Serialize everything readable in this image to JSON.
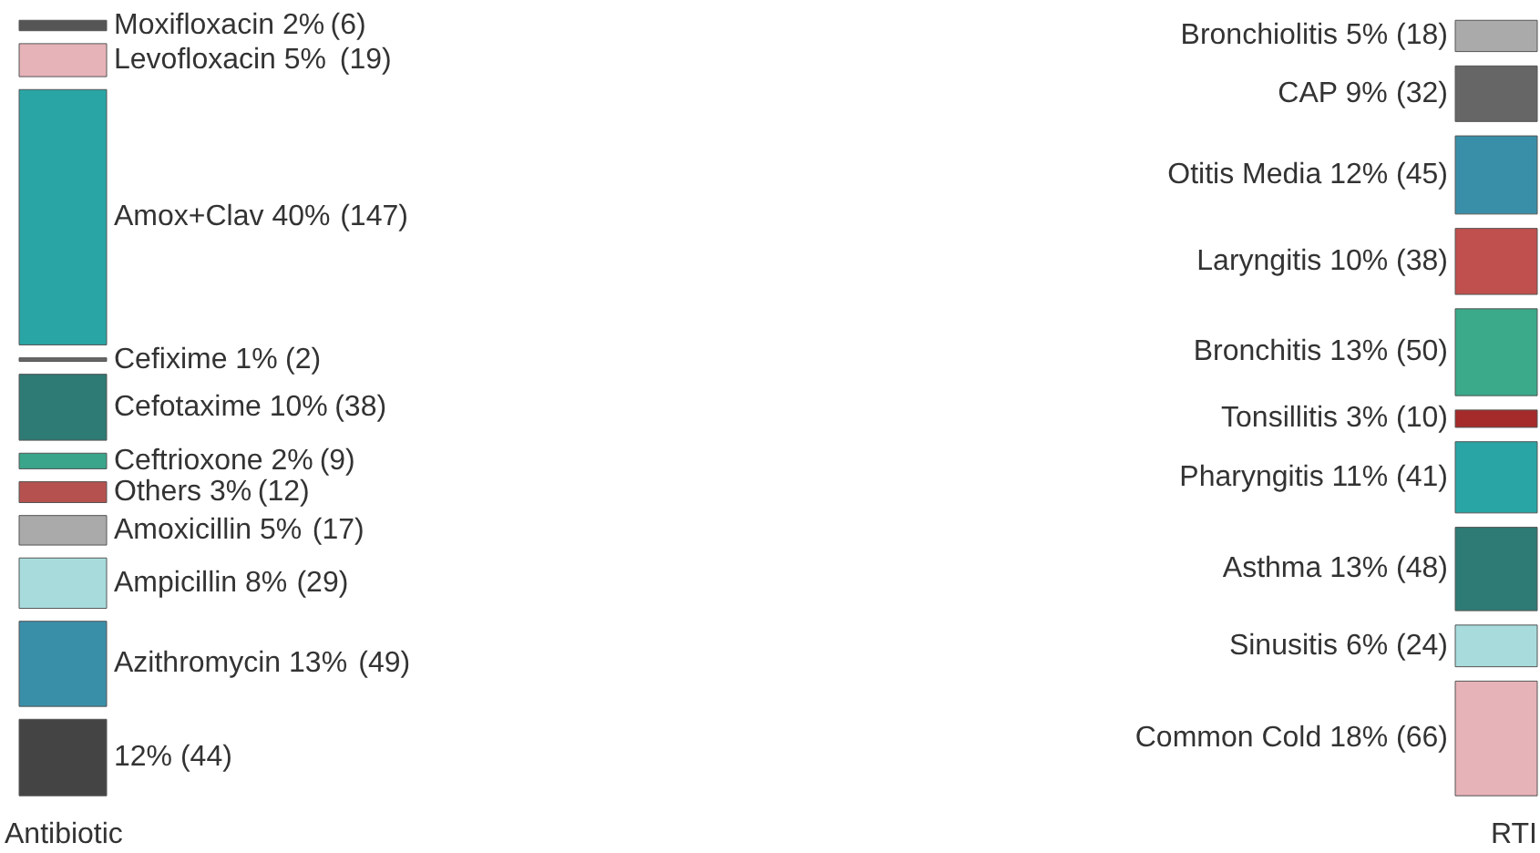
{
  "chart_data": {
    "type": "other",
    "categories": [
      "Moxifloxacin 2%",
      "Levofloxacin 5%",
      "Amox+Clav 40%",
      "Cefixime 1%",
      "Cefotaxime 10%",
      "Ceftrioxone 2%",
      "Others 3%",
      "Amoxicillin 5%",
      "Ampicillin 8%",
      "Azithromycin 13%",
      "12%",
      "Bronchiolitis 5%",
      "CAP 9%",
      "Otitis Media 12%",
      "Laryngitis 10%",
      "Bronchitis 13%",
      "Tonsillitis 3%",
      "Pharyngitis 11%",
      "Asthma 13%",
      "Sinusitis 6%",
      "Common Cold 18%"
    ],
    "colors": [
      "#555555",
      "#e6b3b8",
      "#2aa5a5",
      "#666666",
      "#2e7a74",
      "#3aa58a",
      "#b5524f",
      "#aaaaaa",
      "#a8dcdc",
      "#3a8fa8",
      "#444444",
      "#aaaaaa",
      "#666666",
      "#3a8fa8",
      "#c0504d",
      "#3aaa8a",
      "#a52a2a",
      "#2aa5a5",
      "#2e7a74",
      "#a8dcdc",
      "#e6b3b8"
    ],
    "series": [
      {
        "name": "Antibiotic",
        "values": [
          6,
          19,
          147,
          2,
          38,
          9,
          12,
          17,
          29,
          49,
          44,
          null,
          null,
          null,
          null,
          null,
          null,
          null,
          null,
          null,
          null
        ],
        "value_labels": [
          "(6)",
          "(19)",
          "(147)",
          "(2)",
          "(38)",
          "(9)",
          "(12)",
          "(17)",
          "(29)",
          "(49)",
          "(44)",
          null,
          null,
          null,
          null,
          null,
          null,
          null,
          null,
          null,
          null
        ]
      },
      {
        "name": "RTI",
        "values": [
          null,
          null,
          null,
          null,
          null,
          null,
          null,
          null,
          null,
          null,
          null,
          18,
          32,
          45,
          38,
          50,
          10,
          41,
          48,
          24,
          66
        ],
        "value_labels": [
          null,
          null,
          null,
          null,
          null,
          null,
          null,
          null,
          null,
          null,
          null,
          "(18)",
          "(32)",
          "(45)",
          "(38)",
          "(50)",
          "(10)",
          "(41)",
          "(48)",
          "(24)",
          "(66)"
        ]
      }
    ]
  }
}
